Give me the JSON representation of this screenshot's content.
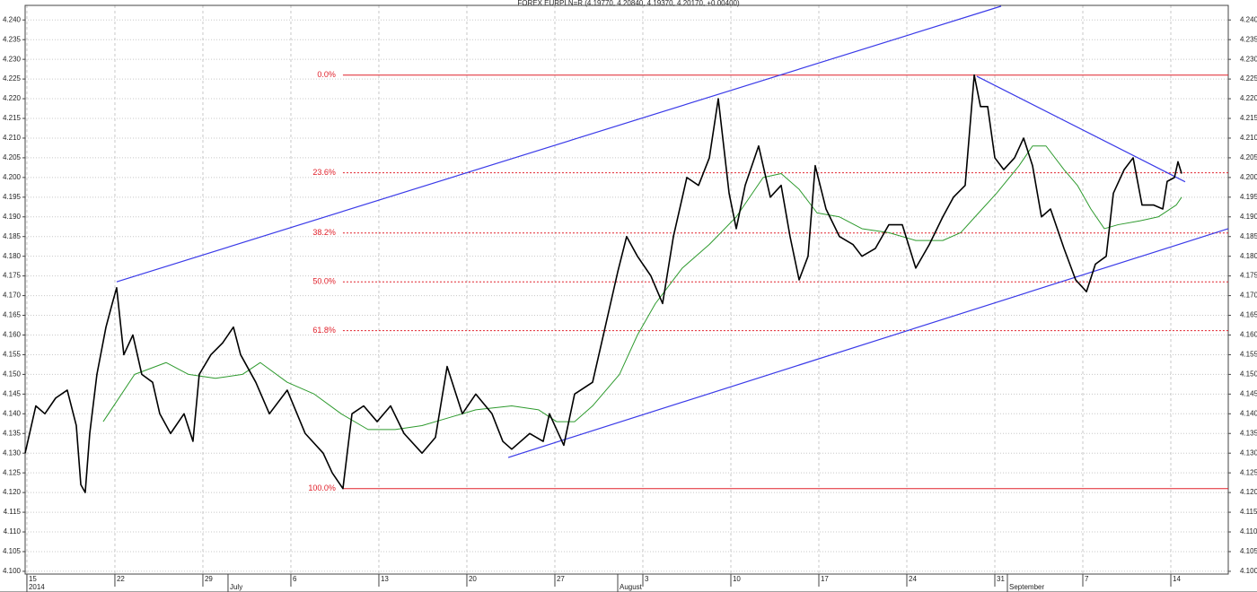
{
  "chart_data": {
    "type": "line",
    "title": "FOREX EURPLN=R (4.19770, 4.20840, 4.19370, 4.20170, +0.00400)",
    "xlim": [
      -0.14,
      95.57
    ],
    "ylim": [
      4.0993,
      4.2437
    ],
    "grid": true,
    "xticks": [
      {
        "value": 0,
        "label": "15"
      },
      {
        "value": 7,
        "label": "22"
      },
      {
        "value": 14,
        "label": "29"
      },
      {
        "value": 21,
        "label": "6"
      },
      {
        "value": 28,
        "label": "13"
      },
      {
        "value": 35,
        "label": "20"
      },
      {
        "value": 42,
        "label": "27"
      },
      {
        "value": 49,
        "label": "3"
      },
      {
        "value": 56,
        "label": "10"
      },
      {
        "value": 63,
        "label": "17"
      },
      {
        "value": 70,
        "label": "24"
      },
      {
        "value": 77,
        "label": "31"
      },
      {
        "value": 84,
        "label": "7"
      },
      {
        "value": 91,
        "label": "14"
      }
    ],
    "month_labels": [
      {
        "value": 0,
        "label": "2014"
      },
      {
        "value": 16,
        "label": "July"
      },
      {
        "value": 47,
        "label": "August"
      },
      {
        "value": 78,
        "label": "September"
      }
    ],
    "yticks": [
      {
        "value": 4.1,
        "label": "4.100"
      },
      {
        "value": 4.105,
        "label": "4.105"
      },
      {
        "value": 4.11,
        "label": "4.110"
      },
      {
        "value": 4.115,
        "label": "4.115"
      },
      {
        "value": 4.12,
        "label": "4.120"
      },
      {
        "value": 4.125,
        "label": "4.125"
      },
      {
        "value": 4.13,
        "label": "4.130"
      },
      {
        "value": 4.135,
        "label": "4.135"
      },
      {
        "value": 4.14,
        "label": "4.140"
      },
      {
        "value": 4.145,
        "label": "4.145"
      },
      {
        "value": 4.15,
        "label": "4.150"
      },
      {
        "value": 4.155,
        "label": "4.155"
      },
      {
        "value": 4.16,
        "label": "4.160"
      },
      {
        "value": 4.165,
        "label": "4.165"
      },
      {
        "value": 4.17,
        "label": "4.170"
      },
      {
        "value": 4.175,
        "label": "4.175"
      },
      {
        "value": 4.18,
        "label": "4.180"
      },
      {
        "value": 4.185,
        "label": "4.185"
      },
      {
        "value": 4.19,
        "label": "4.190"
      },
      {
        "value": 4.195,
        "label": "4.195"
      },
      {
        "value": 4.2,
        "label": "4.200"
      },
      {
        "value": 4.205,
        "label": "4.205"
      },
      {
        "value": 4.21,
        "label": "4.210"
      },
      {
        "value": 4.215,
        "label": "4.215"
      },
      {
        "value": 4.22,
        "label": "4.220"
      },
      {
        "value": 4.225,
        "label": "4.225"
      },
      {
        "value": 4.23,
        "label": "4.230"
      },
      {
        "value": 4.235,
        "label": "4.235"
      },
      {
        "value": 4.24,
        "label": "4.240"
      }
    ],
    "series": [
      {
        "color": "#000000",
        "width": 1.6,
        "x": [
          -0.14,
          0.71,
          1.43,
          2.29,
          3.21,
          3.93,
          4.29,
          4.64,
          5.0,
          5.57,
          6.29,
          6.79,
          7.14,
          7.71,
          8.43,
          9.14,
          10.0,
          10.57,
          11.43,
          12.5,
          13.21,
          13.71,
          14.64,
          15.57,
          16.43,
          17.0,
          18.21,
          19.29,
          20.71,
          22.14,
          23.57,
          24.29,
          25.14,
          25.86,
          26.79,
          27.86,
          28.93,
          30.0,
          31.43,
          32.5,
          33.43,
          34.64,
          35.71,
          37.0,
          37.86,
          38.57,
          40.0,
          41.07,
          41.57,
          42.71,
          43.57,
          45.0,
          45.86,
          47.0,
          47.71,
          48.57,
          49.64,
          50.57,
          51.43,
          52.5,
          53.43,
          54.29,
          55.0,
          55.86,
          56.43,
          57.14,
          58.21,
          59.14,
          60.0,
          60.71,
          61.43,
          62.14,
          62.71,
          63.57,
          64.64,
          65.71,
          66.43,
          67.5,
          68.57,
          69.64,
          70.71,
          71.79,
          72.86,
          73.71,
          74.64,
          75.36,
          75.86,
          76.43,
          77.0,
          77.71,
          78.57,
          79.29,
          80.0,
          80.71,
          81.43,
          82.5,
          83.43,
          84.29,
          85.0,
          85.86,
          86.43,
          87.29,
          88.0,
          88.71,
          89.64,
          90.36,
          90.71,
          91.29,
          91.57,
          91.86
        ],
        "values": [
          4.13,
          4.142,
          4.14,
          4.144,
          4.146,
          4.137,
          4.122,
          4.12,
          4.135,
          4.15,
          4.162,
          4.168,
          4.172,
          4.155,
          4.16,
          4.15,
          4.148,
          4.14,
          4.135,
          4.14,
          4.133,
          4.15,
          4.155,
          4.158,
          4.162,
          4.155,
          4.148,
          4.14,
          4.146,
          4.135,
          4.13,
          4.125,
          4.121,
          4.14,
          4.142,
          4.138,
          4.142,
          4.135,
          4.13,
          4.134,
          4.152,
          4.14,
          4.145,
          4.14,
          4.133,
          4.131,
          4.135,
          4.133,
          4.14,
          4.132,
          4.145,
          4.148,
          4.16,
          4.176,
          4.185,
          4.18,
          4.175,
          4.168,
          4.185,
          4.2,
          4.198,
          4.205,
          4.22,
          4.196,
          4.187,
          4.198,
          4.208,
          4.195,
          4.198,
          4.185,
          4.174,
          4.18,
          4.203,
          4.192,
          4.185,
          4.183,
          4.18,
          4.182,
          4.188,
          4.188,
          4.177,
          4.183,
          4.19,
          4.195,
          4.198,
          4.226,
          4.218,
          4.218,
          4.205,
          4.202,
          4.205,
          4.21,
          4.203,
          4.19,
          4.192,
          4.182,
          4.174,
          4.171,
          4.178,
          4.18,
          4.196,
          4.202,
          4.205,
          4.193,
          4.193,
          4.192,
          4.199,
          4.2,
          4.204,
          4.201
        ]
      },
      {
        "color": "#2e9a2e",
        "width": 1,
        "x": [
          6.07,
          8.57,
          11.07,
          12.86,
          15.0,
          17.14,
          18.57,
          20.71,
          22.86,
          25.0,
          27.14,
          29.29,
          31.43,
          33.57,
          35.71,
          38.57,
          40.71,
          42.14,
          43.57,
          45.0,
          47.14,
          48.57,
          50.0,
          52.14,
          54.29,
          56.43,
          58.57,
          60.0,
          61.43,
          62.86,
          64.64,
          66.43,
          68.57,
          70.71,
          72.86,
          74.29,
          75.71,
          77.14,
          78.93,
          80.0,
          81.07,
          82.5,
          83.57,
          84.64,
          85.71,
          86.79,
          88.57,
          90.0,
          91.43,
          91.86
        ],
        "values": [
          4.138,
          4.15,
          4.153,
          4.15,
          4.149,
          4.15,
          4.153,
          4.148,
          4.145,
          4.14,
          4.136,
          4.136,
          4.137,
          4.139,
          4.141,
          4.142,
          4.141,
          4.138,
          4.138,
          4.142,
          4.15,
          4.16,
          4.168,
          4.177,
          4.183,
          4.19,
          4.2,
          4.201,
          4.197,
          4.191,
          4.19,
          4.187,
          4.186,
          4.184,
          4.184,
          4.186,
          4.191,
          4.196,
          4.203,
          4.208,
          4.208,
          4.202,
          4.198,
          4.192,
          4.187,
          4.188,
          4.189,
          4.19,
          4.193,
          4.195
        ]
      }
    ],
    "fib_start": 25.14,
    "fib_color": "#e0202a",
    "fib_levels": [
      {
        "label": "0.0%",
        "value": 4.226,
        "style": "solid"
      },
      {
        "label": "23.6%",
        "value": 4.2012,
        "style": "dashed"
      },
      {
        "label": "38.2%",
        "value": 4.1859,
        "style": "dashed"
      },
      {
        "label": "50.0%",
        "value": 4.1735,
        "style": "dashed"
      },
      {
        "label": "61.8%",
        "value": 4.1611,
        "style": "dashed"
      },
      {
        "label": "100.0%",
        "value": 4.121,
        "style": "solid"
      }
    ],
    "trendline_color": "#3a3ae8",
    "trendlines": [
      {
        "x": [
          7.14,
          77.5
        ],
        "y": [
          4.1735,
          4.2435
        ]
      },
      {
        "x": [
          38.29,
          95.57
        ],
        "y": [
          4.1289,
          4.187
        ]
      },
      {
        "x": [
          75.57,
          92.14
        ],
        "y": [
          4.2257,
          4.1989
        ]
      }
    ]
  }
}
